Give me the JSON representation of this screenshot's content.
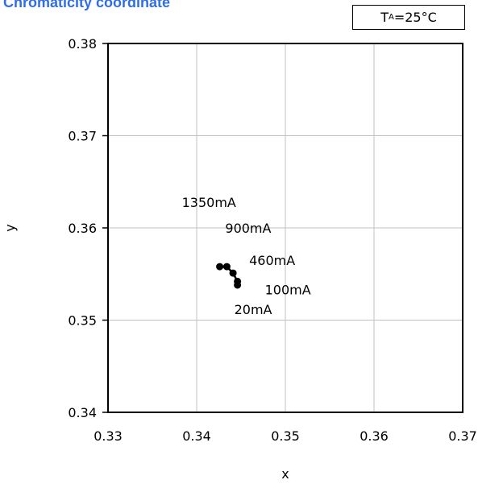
{
  "header": {
    "title": "Chromaticity coordinate",
    "condition": {
      "symbol": "T",
      "subscript": "A",
      "value": "=25°C"
    }
  },
  "chart_data": {
    "type": "scatter",
    "title": "Chromaticity coordinate",
    "xlabel": "x",
    "ylabel": "y",
    "xlim": [
      0.33,
      0.37
    ],
    "ylim": [
      0.34,
      0.38
    ],
    "xticks": [
      "0.33",
      "0.34",
      "0.35",
      "0.36",
      "0.37"
    ],
    "yticks": [
      "0.34",
      "0.35",
      "0.36",
      "0.37",
      "0.38"
    ],
    "grid": true,
    "legend": "none",
    "point_color": "#000000",
    "grid_color": "#c0c0c0",
    "series": [
      {
        "points": [
          {
            "x": 0.3446,
            "y": 0.3538,
            "label": "20mA"
          },
          {
            "x": 0.3446,
            "y": 0.3542,
            "label": "100mA"
          },
          {
            "x": 0.3441,
            "y": 0.3551,
            "label": "460mA"
          },
          {
            "x": 0.3434,
            "y": 0.3558,
            "label": "900mA"
          },
          {
            "x": 0.3426,
            "y": 0.3558,
            "label": "1350mA"
          }
        ]
      }
    ]
  }
}
